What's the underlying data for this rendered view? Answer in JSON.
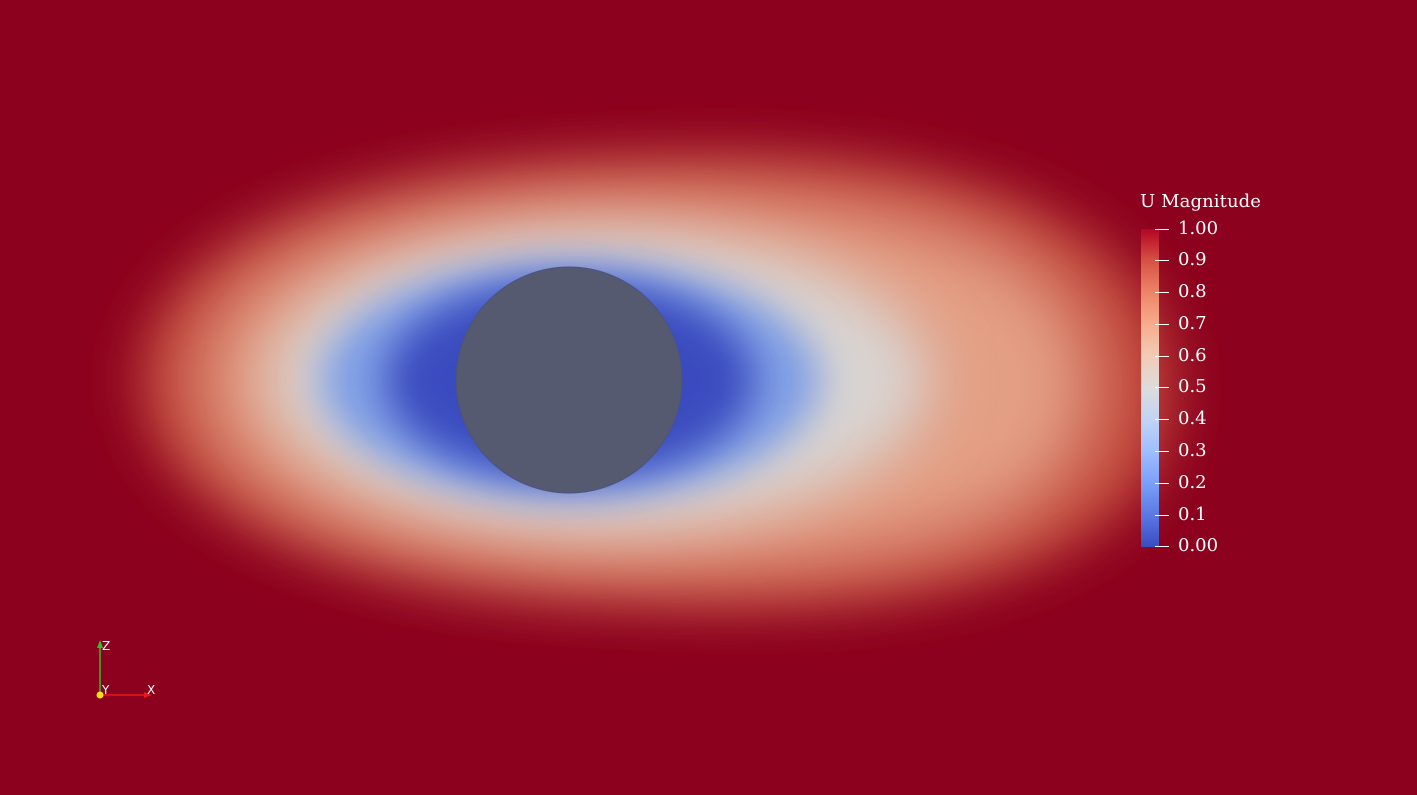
{
  "legend": {
    "title": "U Magnitude",
    "ticks": [
      "1.00",
      "0.9",
      "0.8",
      "0.7",
      "0.6",
      "0.5",
      "0.4",
      "0.3",
      "0.2",
      "0.1",
      "0.00"
    ],
    "range": [
      0.0,
      1.0
    ],
    "colormap": "Cool to Warm"
  },
  "axes": {
    "z_label": "Z",
    "y_label": "Y",
    "x_label": "X"
  },
  "colors": {
    "background": "#8c011e",
    "obstacle": "#555a70",
    "low": "#3b4cc0",
    "high": "#b40426"
  }
}
